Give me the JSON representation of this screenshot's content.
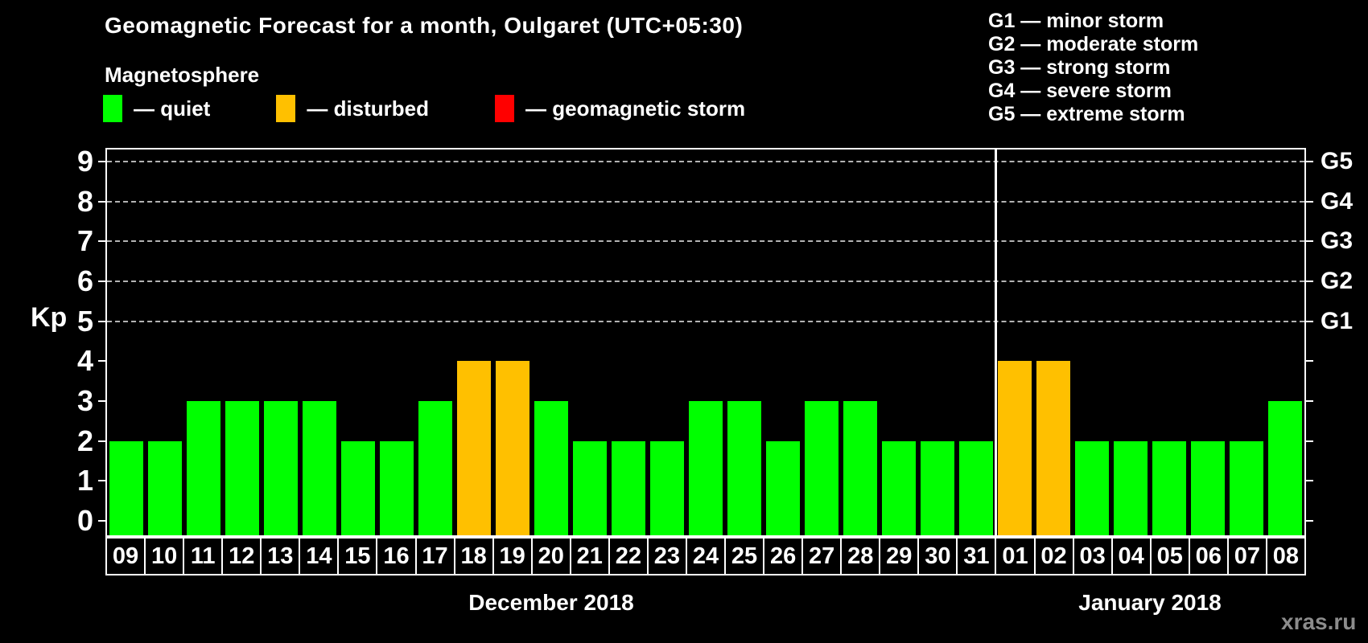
{
  "title": "Geomagnetic Forecast for a month, Oulgaret (UTC+05:30)",
  "subtitle": "Magnetosphere",
  "colors": {
    "quiet": "#00ff00",
    "disturbed": "#ffc000",
    "storm": "#ff0000",
    "axis": "#ffffff",
    "grid": "#b3b3b3",
    "watermark": "#8c8c8c"
  },
  "magnetosphere_legend": [
    {
      "key": "quiet",
      "label": "— quiet"
    },
    {
      "key": "disturbed",
      "label": "— disturbed"
    },
    {
      "key": "storm",
      "label": "— geomagnetic storm"
    }
  ],
  "g_scale_legend": [
    "G1 — minor storm",
    "G2 — moderate storm",
    "G3 — strong storm",
    "G4 — severe storm",
    "G5 — extreme storm"
  ],
  "watermark": "xras.ru",
  "chart_data": {
    "type": "bar",
    "title": "Geomagnetic Forecast for a month, Oulgaret (UTC+05:30)",
    "ylabel": "Kp",
    "ylim": [
      0,
      9
    ],
    "yticks": [
      0,
      1,
      2,
      3,
      4,
      5,
      6,
      7,
      8,
      9
    ],
    "grid_levels": [
      5,
      6,
      7,
      8,
      9
    ],
    "grid": "dashed horizontal at G-storm levels only",
    "legend_position": "top",
    "right_axis": [
      {
        "kp": 5,
        "label": "G1"
      },
      {
        "kp": 6,
        "label": "G2"
      },
      {
        "kp": 7,
        "label": "G3"
      },
      {
        "kp": 8,
        "label": "G4"
      },
      {
        "kp": 9,
        "label": "G5"
      }
    ],
    "months": [
      {
        "label": "December 2018",
        "days": [
          {
            "day": "09",
            "kp": 2,
            "condition": "quiet"
          },
          {
            "day": "10",
            "kp": 2,
            "condition": "quiet"
          },
          {
            "day": "11",
            "kp": 3,
            "condition": "quiet"
          },
          {
            "day": "12",
            "kp": 3,
            "condition": "quiet"
          },
          {
            "day": "13",
            "kp": 3,
            "condition": "quiet"
          },
          {
            "day": "14",
            "kp": 3,
            "condition": "quiet"
          },
          {
            "day": "15",
            "kp": 2,
            "condition": "quiet"
          },
          {
            "day": "16",
            "kp": 2,
            "condition": "quiet"
          },
          {
            "day": "17",
            "kp": 3,
            "condition": "quiet"
          },
          {
            "day": "18",
            "kp": 4,
            "condition": "disturbed"
          },
          {
            "day": "19",
            "kp": 4,
            "condition": "disturbed"
          },
          {
            "day": "20",
            "kp": 3,
            "condition": "quiet"
          },
          {
            "day": "21",
            "kp": 2,
            "condition": "quiet"
          },
          {
            "day": "22",
            "kp": 2,
            "condition": "quiet"
          },
          {
            "day": "23",
            "kp": 2,
            "condition": "quiet"
          },
          {
            "day": "24",
            "kp": 3,
            "condition": "quiet"
          },
          {
            "day": "25",
            "kp": 3,
            "condition": "quiet"
          },
          {
            "day": "26",
            "kp": 2,
            "condition": "quiet"
          },
          {
            "day": "27",
            "kp": 3,
            "condition": "quiet"
          },
          {
            "day": "28",
            "kp": 3,
            "condition": "quiet"
          },
          {
            "day": "29",
            "kp": 2,
            "condition": "quiet"
          },
          {
            "day": "30",
            "kp": 2,
            "condition": "quiet"
          },
          {
            "day": "31",
            "kp": 2,
            "condition": "quiet"
          }
        ]
      },
      {
        "label": "January 2018",
        "days": [
          {
            "day": "01",
            "kp": 4,
            "condition": "disturbed"
          },
          {
            "day": "02",
            "kp": 4,
            "condition": "disturbed"
          },
          {
            "day": "03",
            "kp": 2,
            "condition": "quiet"
          },
          {
            "day": "04",
            "kp": 2,
            "condition": "quiet"
          },
          {
            "day": "05",
            "kp": 2,
            "condition": "quiet"
          },
          {
            "day": "06",
            "kp": 2,
            "condition": "quiet"
          },
          {
            "day": "07",
            "kp": 2,
            "condition": "quiet"
          },
          {
            "day": "08",
            "kp": 3,
            "condition": "quiet"
          }
        ]
      }
    ]
  }
}
